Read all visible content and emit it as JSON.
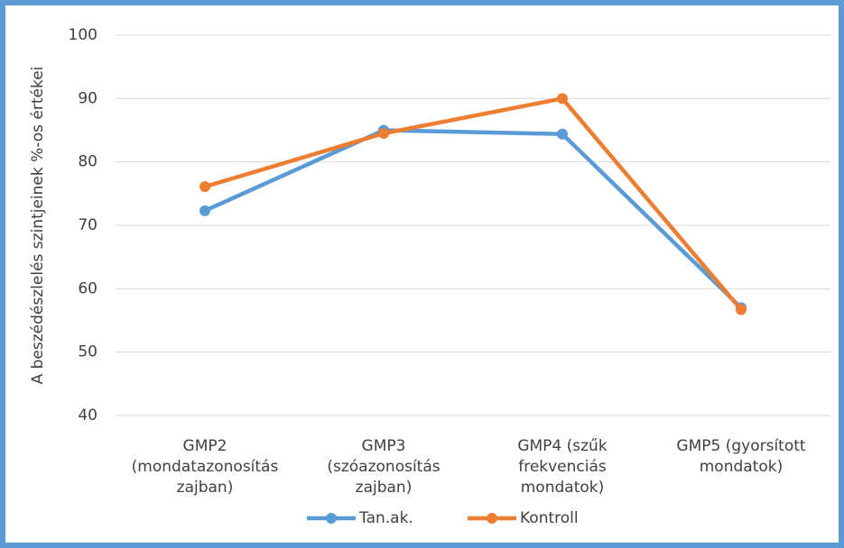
{
  "chart_data": {
    "type": "line",
    "y_label": "A beszédészlelés szintjeinek %-os értékei",
    "categories": [
      "GMP2 (mondatazonosítás zajban)",
      "GMP3 (szóazonosítás zajban)",
      "GMP4 (szűk frekvenciás mondatok)",
      "GMP5 (gyorsított mondatok)"
    ],
    "series": [
      {
        "name": "Tan.ak.",
        "color": "#5b9bd5",
        "values": [
          72.3,
          85,
          84.4,
          57
        ]
      },
      {
        "name": "Kontroll",
        "color": "#ed7d31",
        "values": [
          76.1,
          84.5,
          90,
          56.7
        ]
      }
    ],
    "ylim": [
      40,
      100
    ],
    "yticks": [
      40,
      50,
      60,
      70,
      80,
      90,
      100
    ],
    "grid": true,
    "legend": "bottom"
  }
}
